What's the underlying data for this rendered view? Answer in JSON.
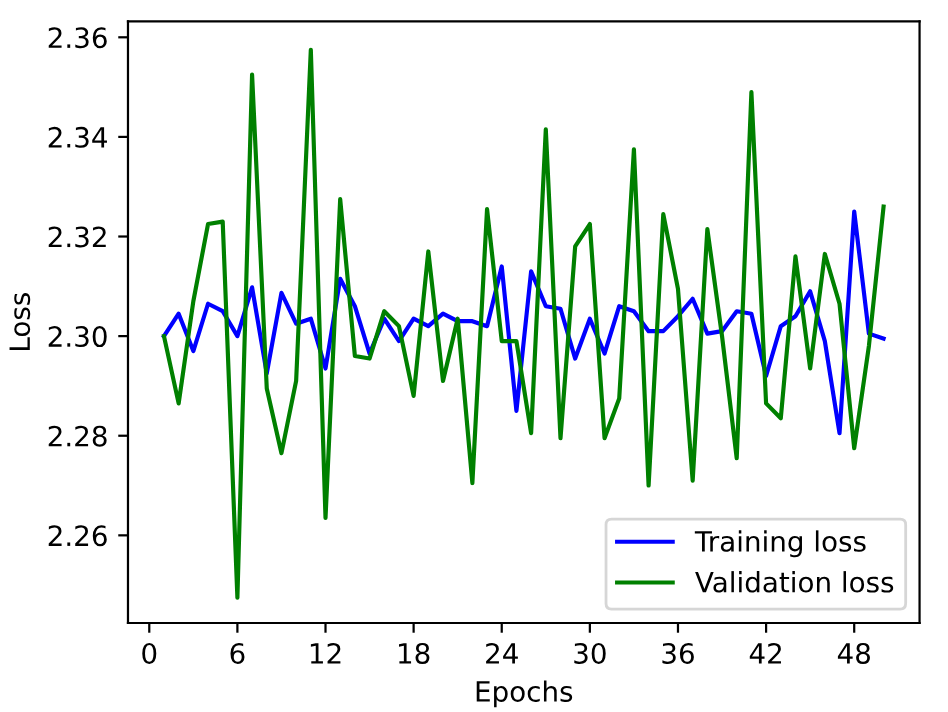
{
  "chart_data": {
    "type": "line",
    "xlabel": "Epochs",
    "ylabel": "Loss",
    "x": [
      1,
      2,
      3,
      4,
      5,
      6,
      7,
      8,
      9,
      10,
      11,
      12,
      13,
      14,
      15,
      16,
      17,
      18,
      19,
      20,
      21,
      22,
      23,
      24,
      25,
      26,
      27,
      28,
      29,
      30,
      31,
      32,
      33,
      34,
      35,
      36,
      37,
      38,
      39,
      40,
      41,
      42,
      43,
      44,
      45,
      46,
      47,
      48,
      49,
      50
    ],
    "series": [
      {
        "name": "Training loss",
        "color": "#0000ff",
        "values": [
          2.3,
          2.3045,
          2.297,
          2.3065,
          2.305,
          2.3,
          2.3098,
          2.2925,
          2.3087,
          2.3025,
          2.3035,
          2.2935,
          2.3115,
          2.306,
          2.2965,
          2.3035,
          2.299,
          2.3035,
          2.302,
          2.3045,
          2.303,
          2.303,
          2.302,
          2.314,
          2.285,
          2.313,
          2.306,
          2.3055,
          2.2955,
          2.3035,
          2.2965,
          2.306,
          2.305,
          2.301,
          2.301,
          2.304,
          2.3075,
          2.3005,
          2.301,
          2.305,
          2.3045,
          2.292,
          2.302,
          2.304,
          2.309,
          2.299,
          2.2805,
          2.325,
          2.3005,
          2.2995
        ]
      },
      {
        "name": "Validation loss",
        "color": "#008000",
        "values": [
          2.3,
          2.2865,
          2.307,
          2.3225,
          2.323,
          2.2475,
          2.3525,
          2.2895,
          2.2765,
          2.291,
          2.3575,
          2.2635,
          2.3275,
          2.296,
          2.2955,
          2.305,
          2.302,
          2.288,
          2.317,
          2.291,
          2.3035,
          2.2705,
          2.3255,
          2.299,
          2.299,
          2.2805,
          2.3415,
          2.2795,
          2.318,
          2.3225,
          2.2795,
          2.2875,
          2.3375,
          2.27,
          2.3245,
          2.3095,
          2.271,
          2.3215,
          2.3,
          2.2755,
          2.349,
          2.2865,
          2.2835,
          2.316,
          2.2935,
          2.3165,
          2.3065,
          2.2775,
          2.298,
          2.326
        ]
      }
    ],
    "xlim": [
      -1.45,
      52.45
    ],
    "xticks": [
      0,
      6,
      12,
      18,
      24,
      30,
      36,
      42,
      48
    ],
    "ylim": [
      2.2424,
      2.3632
    ],
    "yticks": [
      2.26,
      2.28,
      {
        "value": 2.3,
        "label": "2.30"
      },
      2.32,
      2.34,
      2.36
    ],
    "grid": false,
    "legend": "bottom right",
    "marker": "none",
    "line_style": "solid"
  }
}
